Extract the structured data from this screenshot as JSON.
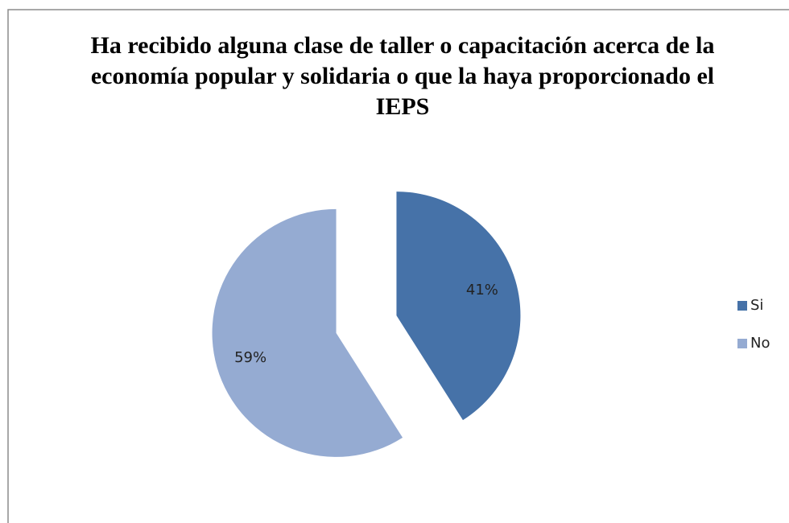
{
  "chart_data": {
    "type": "pie",
    "title": "Ha recibido alguna clase de taller o capacitación acerca de la economía popular y solidaria o que la haya proporcionado el IEPS",
    "categories": [
      "Si",
      "No"
    ],
    "values": [
      41,
      59
    ],
    "value_labels": [
      "41%",
      "59%"
    ],
    "colors": [
      "#4672a8",
      "#95abd2"
    ],
    "exploded": true,
    "legend": "right"
  }
}
